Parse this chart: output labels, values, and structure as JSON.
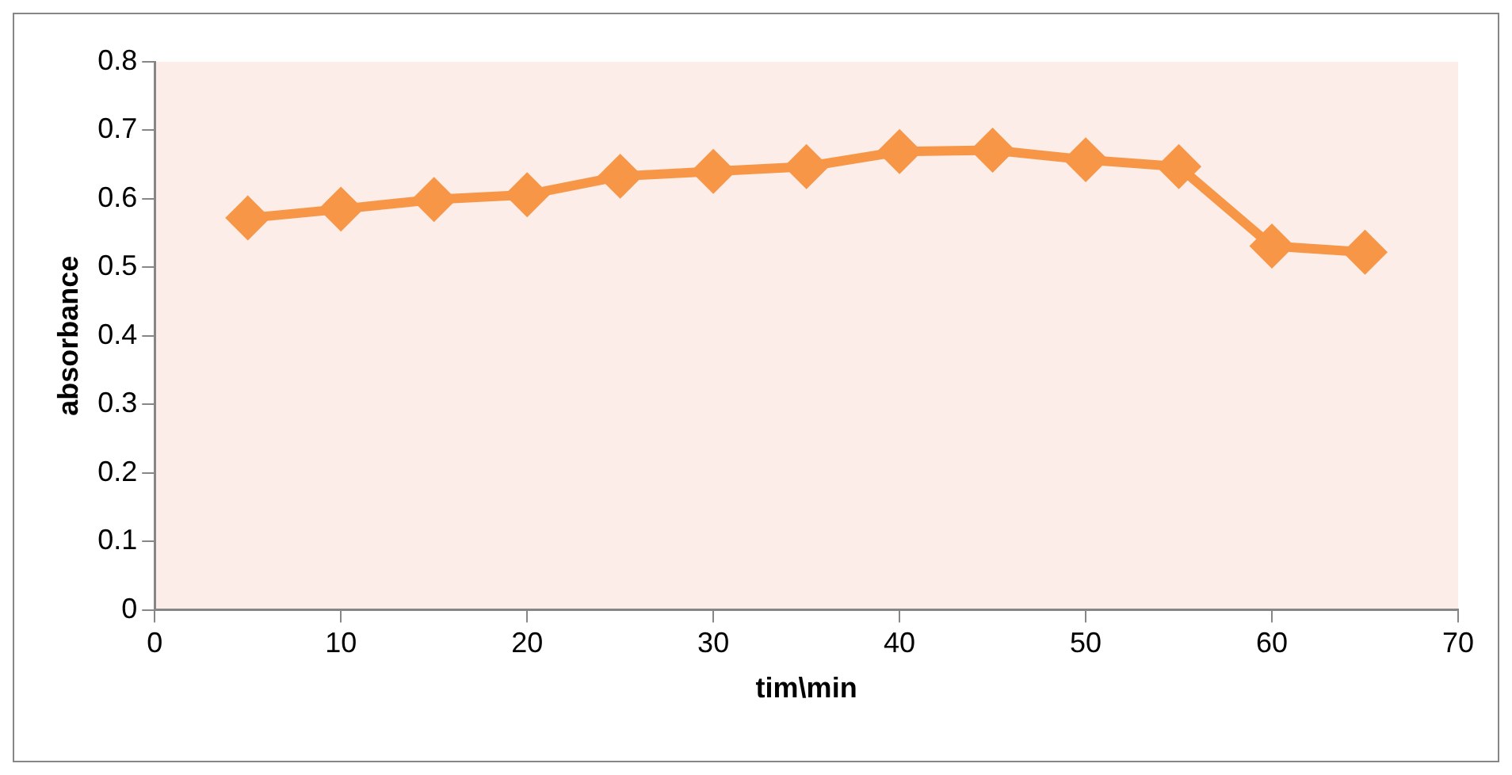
{
  "chart_data": {
    "type": "line",
    "xlabel": "tim\\min",
    "ylabel": "absorbance",
    "x": [
      5,
      10,
      15,
      20,
      25,
      30,
      35,
      40,
      45,
      50,
      55,
      60,
      65
    ],
    "series": [
      {
        "color": "#f79646",
        "values": [
          0.572,
          0.585,
          0.599,
          0.606,
          0.633,
          0.64,
          0.647,
          0.669,
          0.671,
          0.657,
          0.647,
          0.531,
          0.522
        ]
      }
    ],
    "xlim": [
      0,
      70
    ],
    "xticks": [
      0,
      10,
      20,
      30,
      40,
      50,
      60,
      70
    ],
    "ylim": [
      0,
      0.8
    ],
    "yticks": [
      0,
      0.1,
      0.2,
      0.3,
      0.4,
      0.5,
      0.6,
      0.7,
      0.8
    ],
    "grid": false,
    "legend": false,
    "marker": "diamond",
    "line_style": "solid"
  }
}
